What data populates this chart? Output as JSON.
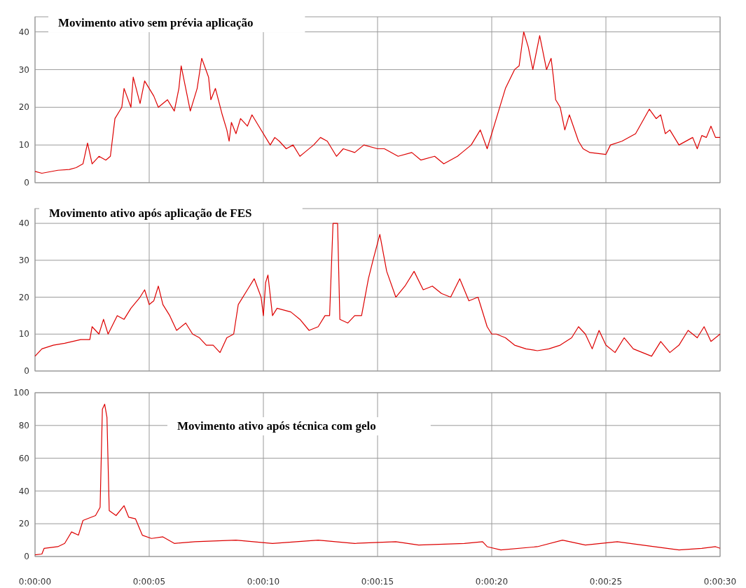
{
  "chart_data": [
    {
      "type": "line",
      "title": "Movimento ativo sem prévia aplicação",
      "xlim": [
        0,
        30
      ],
      "ylim": [
        0,
        44
      ],
      "yticks": [
        0,
        10,
        20,
        30,
        40
      ],
      "xticks": [
        {
          "value": 0,
          "label": null
        },
        {
          "value": 5,
          "label": null
        },
        {
          "value": 10,
          "label": null
        },
        {
          "value": 15,
          "label": null
        },
        {
          "value": 20,
          "label": null
        },
        {
          "value": 25,
          "label": null
        },
        {
          "value": 30,
          "label": null
        }
      ],
      "grid": true,
      "tick_labels": "y",
      "line_style": "solid",
      "marker": "none",
      "series": [
        {
          "color": "#dd0000",
          "x": [
            0,
            0.3,
            1,
            1.5,
            1.8,
            2.1,
            2.3,
            2.5,
            2.8,
            3.1,
            3.3,
            3.5,
            3.8,
            3.9,
            4.2,
            4.3,
            4.6,
            4.8,
            5.2,
            5.4,
            5.8,
            6.1,
            6.3,
            6.4,
            6.6,
            6.8,
            7.1,
            7.3,
            7.6,
            7.7,
            7.9,
            8.2,
            8.4,
            8.5,
            8.6,
            8.8,
            9.0,
            9.3,
            9.5,
            9.8,
            10.1,
            10.3,
            10.5,
            10.7,
            11,
            11.3,
            11.6,
            11.8,
            12.2,
            12.5,
            12.8,
            13.2,
            13.5,
            14,
            14.4,
            15,
            15.3,
            15.9,
            16.5,
            16.9,
            17.5,
            17.9,
            18.5,
            18.7,
            19.1,
            19.5,
            19.8,
            20.0,
            20.2,
            20.6,
            21.0,
            21.2,
            21.4,
            21.6,
            21.8,
            22.1,
            22.4,
            22.6,
            22.7,
            22.8,
            23.0,
            23.2,
            23.4,
            23.8,
            24.0,
            24.3,
            25.0,
            25.2,
            25.7,
            26.3,
            26.9,
            27.2,
            27.4,
            27.6,
            27.8,
            28.2,
            28.8,
            29.0,
            29.2,
            29.4,
            29.6,
            29.8,
            30
          ],
          "values": [
            3,
            2.5,
            3.3,
            3.5,
            4,
            5,
            10.5,
            5,
            7,
            6,
            7,
            17,
            20,
            25,
            20,
            28,
            21,
            27,
            23,
            20,
            22,
            19,
            25,
            31,
            25,
            19,
            25,
            33,
            28,
            22,
            25,
            18,
            14,
            11,
            16,
            13,
            17,
            15,
            18,
            15,
            12,
            10,
            12,
            11,
            9,
            10,
            7,
            8,
            10,
            12,
            11,
            7,
            9,
            8,
            10,
            9,
            9,
            7,
            8,
            6,
            7,
            5,
            7,
            8,
            10,
            14,
            9,
            13,
            17,
            25,
            30,
            31,
            40,
            36,
            30,
            39,
            30,
            33,
            28,
            22,
            20,
            14,
            18,
            11,
            9,
            8,
            7.5,
            10,
            11,
            13,
            19.5,
            17,
            18,
            13,
            14,
            10,
            12,
            9,
            12.5,
            12,
            15,
            12,
            12
          ]
        }
      ]
    },
    {
      "type": "line",
      "title": "Movimento ativo após aplicação de FES",
      "xlim": [
        0,
        30
      ],
      "ylim": [
        0,
        44
      ],
      "yticks": [
        0,
        10,
        20,
        30,
        40
      ],
      "xticks": [
        {
          "value": 0,
          "label": null
        },
        {
          "value": 5,
          "label": null
        },
        {
          "value": 10,
          "label": null
        },
        {
          "value": 15,
          "label": null
        },
        {
          "value": 20,
          "label": null
        },
        {
          "value": 25,
          "label": null
        },
        {
          "value": 30,
          "label": null
        }
      ],
      "grid": true,
      "tick_labels": "y",
      "line_style": "solid",
      "marker": "none",
      "series": [
        {
          "color": "#dd0000",
          "x": [
            0,
            0.3,
            0.8,
            1.3,
            2.0,
            2.4,
            2.5,
            2.8,
            3.0,
            3.2,
            3.6,
            3.9,
            4.2,
            4.6,
            4.8,
            5.0,
            5.2,
            5.4,
            5.6,
            5.9,
            6.2,
            6.6,
            6.9,
            7.2,
            7.5,
            7.8,
            8.1,
            8.4,
            8.7,
            8.9,
            9.3,
            9.6,
            9.9,
            10.0,
            10.1,
            10.2,
            10.4,
            10.6,
            11.2,
            11.6,
            12.0,
            12.4,
            12.7,
            12.9,
            13.05,
            13.25,
            13.35,
            13.7,
            14.0,
            14.3,
            14.6,
            14.8,
            15.1,
            15.4,
            15.8,
            16.2,
            16.6,
            17.0,
            17.4,
            17.8,
            18.2,
            18.6,
            19.0,
            19.4,
            19.8,
            20.0,
            20.2,
            20.6,
            21.0,
            21.5,
            22.0,
            22.5,
            23.0,
            23.5,
            23.8,
            24.1,
            24.4,
            24.7,
            25.0,
            25.4,
            25.8,
            26.2,
            26.6,
            27.0,
            27.4,
            27.8,
            28.2,
            28.6,
            29.0,
            29.3,
            29.6,
            30
          ],
          "values": [
            4,
            6,
            7,
            7.5,
            8.5,
            8.5,
            12,
            10,
            14,
            10,
            15,
            14,
            17,
            20,
            22,
            18,
            19,
            23,
            18,
            15,
            11,
            13,
            10,
            9,
            7,
            7,
            5,
            9,
            10,
            18,
            22,
            25,
            20,
            15,
            24,
            26,
            15,
            17,
            16,
            14,
            11,
            12,
            15,
            15,
            40,
            40,
            14,
            13,
            15,
            15,
            25,
            30,
            37,
            27,
            20,
            23,
            27,
            22,
            23,
            21,
            20,
            25,
            19,
            20,
            12,
            10,
            10,
            9,
            7,
            6,
            5.5,
            6,
            7,
            9,
            12,
            10,
            6,
            11,
            7,
            5,
            9,
            6,
            5,
            4,
            8,
            5,
            7,
            11,
            9,
            12,
            8,
            10
          ]
        }
      ]
    },
    {
      "type": "line",
      "title": "Movimento ativo após técnica com gelo",
      "xlim": [
        0,
        30
      ],
      "ylim": [
        0,
        100
      ],
      "yticks": [
        0,
        20,
        40,
        60,
        80,
        100
      ],
      "xticks": [
        {
          "value": 0,
          "label": "0:00:00"
        },
        {
          "value": 5,
          "label": "0:00:05"
        },
        {
          "value": 10,
          "label": "0:00:10"
        },
        {
          "value": 15,
          "label": "0:00:15"
        },
        {
          "value": 20,
          "label": "0:00:20"
        },
        {
          "value": 25,
          "label": "0:00:25"
        },
        {
          "value": 30,
          "label": "0:00:30"
        }
      ],
      "grid": true,
      "line_style": "solid",
      "marker": "none",
      "series": [
        {
          "color": "#dd0000",
          "x": [
            0,
            0.3,
            0.4,
            1.0,
            1.3,
            1.6,
            1.9,
            2.1,
            2.65,
            2.85,
            2.95,
            3.05,
            3.15,
            3.25,
            3.55,
            3.9,
            4.1,
            4.4,
            4.7,
            5.1,
            5.6,
            6.1,
            7,
            8.8,
            10.4,
            12.4,
            14,
            15.8,
            16.8,
            18.8,
            19.6,
            19.8,
            20.4,
            22,
            23.1,
            24.1,
            25.5,
            27.1,
            28.2,
            29.2,
            29.8,
            30
          ],
          "values": [
            1,
            1.5,
            5,
            6,
            8,
            15,
            13,
            22,
            25,
            30,
            90,
            93,
            85,
            28,
            25,
            31,
            24,
            23,
            13,
            11,
            12,
            8,
            9,
            10,
            8,
            10,
            8,
            9,
            7,
            8,
            9,
            6,
            4,
            6,
            10,
            7,
            9,
            6,
            4,
            5,
            6,
            5
          ]
        }
      ]
    }
  ]
}
